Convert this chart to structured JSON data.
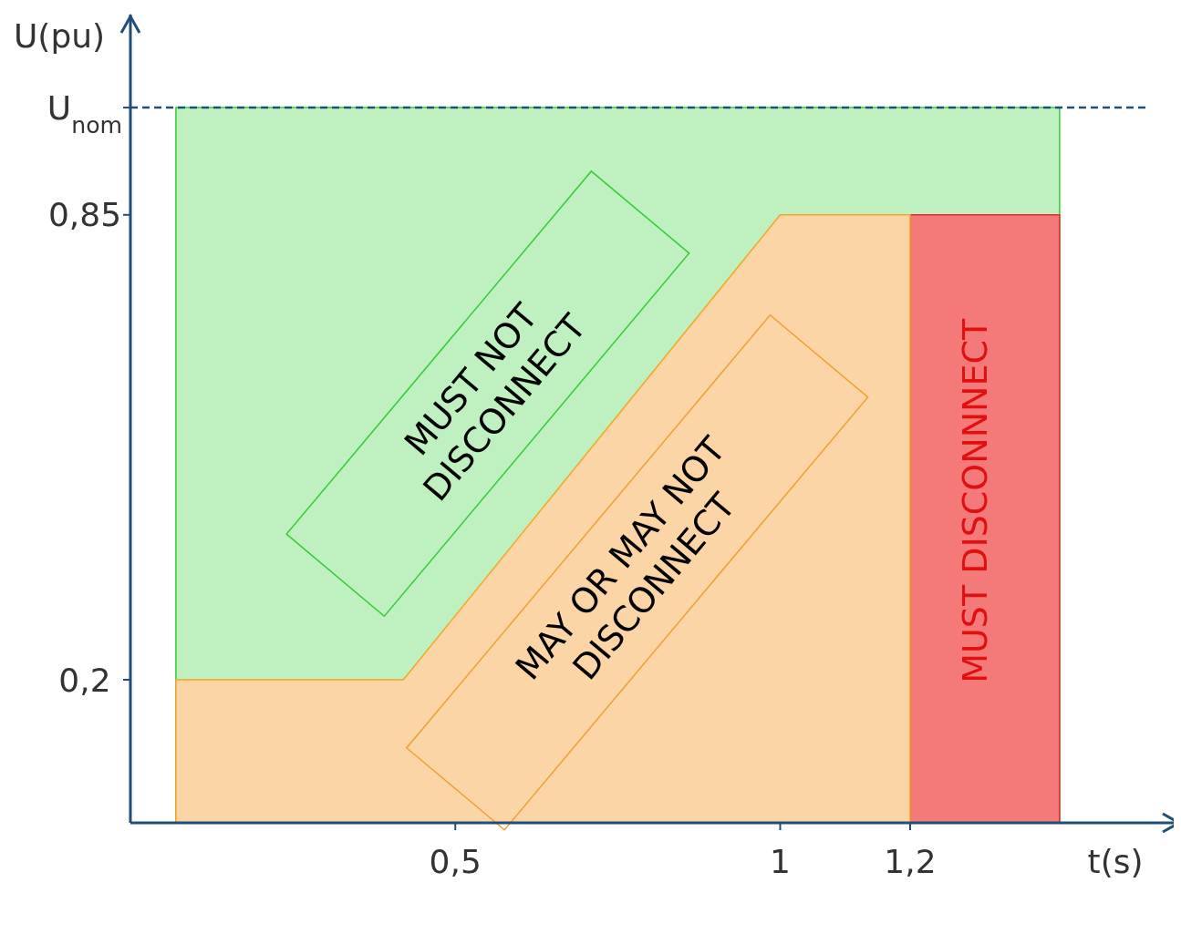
{
  "chart_data": {
    "type": "area",
    "xlabel": "t(s)",
    "ylabel": "U(pu)",
    "xlim": [
      0,
      1.6
    ],
    "ylim": [
      0,
      1.13
    ],
    "xticks": [
      {
        "value": 0.5,
        "label": "0,5"
      },
      {
        "value": 1,
        "label": "1"
      },
      {
        "value": 1.2,
        "label": "1,2"
      }
    ],
    "yticks": [
      {
        "value": 1,
        "label": "U$_{nom}$"
      },
      {
        "value": 0.85,
        "label": "0,85"
      },
      {
        "value": 0.2,
        "label": "0,2"
      }
    ],
    "series": [
      {
        "color": "#33cc33",
        "x": [
          0.07,
          1.43
        ],
        "values": [
          1,
          1
        ]
      },
      {
        "color": "#e82828",
        "x": [
          1.2,
          1.43
        ],
        "values": [
          0.85,
          0.85
        ]
      },
      {
        "color": "#fbd5a5",
        "x": [
          0.07,
          0.42,
          1.0,
          1.2
        ],
        "values": [
          0.2,
          0.2,
          0.85,
          0.85
        ]
      }
    ],
    "ref_lines": [
      {
        "axis": "y",
        "value": 1,
        "color": "#1f4e79",
        "line_style": "dashed"
      }
    ],
    "annotations": [
      "MUST NOT\nDISCONNECT",
      "MAY OR MAY NOT\nDISCONNECT",
      "MUST DISCONNNECT"
    ],
    "grid": false
  }
}
